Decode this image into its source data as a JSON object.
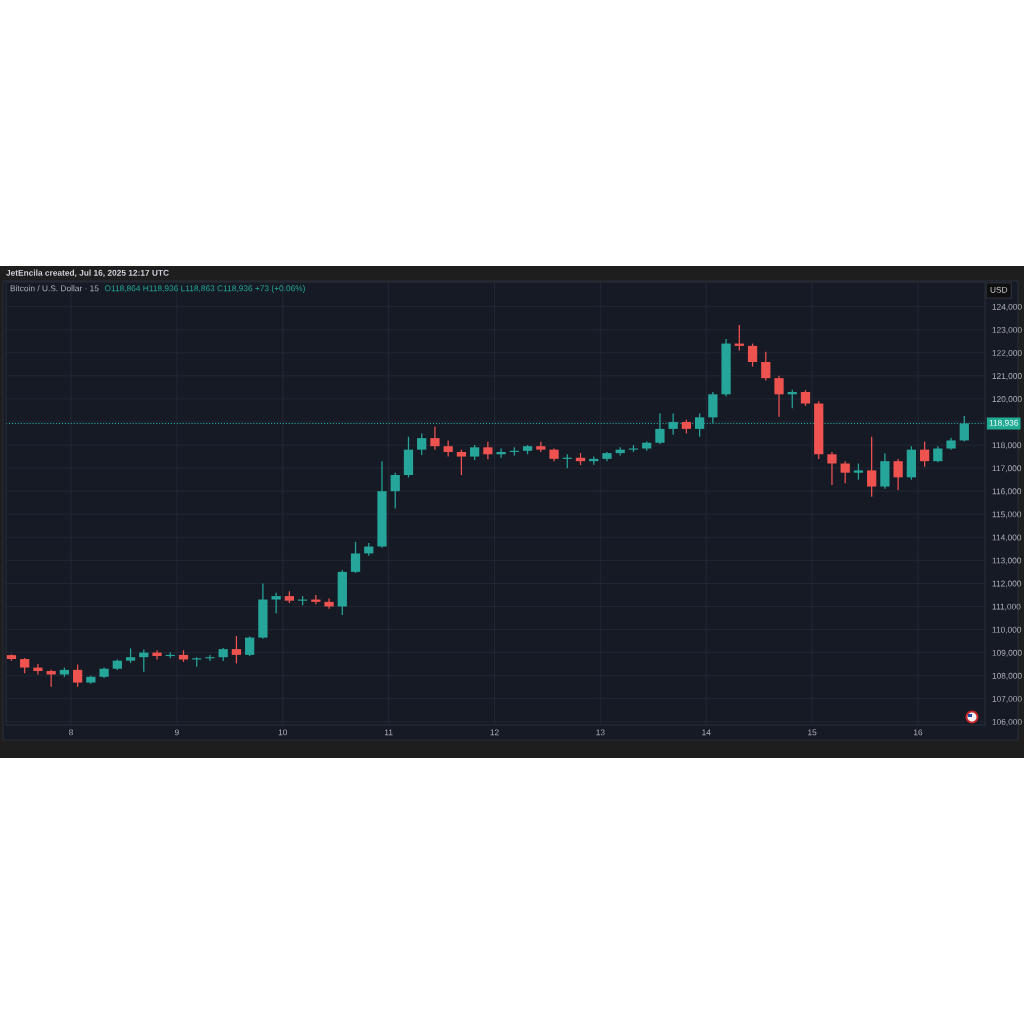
{
  "chart_data": {
    "type": "candlestick",
    "title": "Bitcoin / U.S. Dollar · 15",
    "annotations": [
      "JetEncila created, Jul 16, 2025 12:17 UTC",
      "O118,864 H118,936 L118,863 C118,936 +73 (+0.06%)",
      "USD"
    ],
    "x": [
      7.4375,
      7.5625,
      7.6875,
      7.8125,
      7.9375,
      8.0625,
      8.1875,
      8.3125,
      8.4375,
      8.5625,
      8.6875,
      8.8125,
      8.9375,
      9.0625,
      9.1875,
      9.3125,
      9.4375,
      9.5625,
      9.6875,
      9.8125,
      9.9375,
      10.0625,
      10.1875,
      10.3125,
      10.4375,
      10.5625,
      10.6875,
      10.8125,
      10.9375,
      11.0625,
      11.1875,
      11.3125,
      11.4375,
      11.5625,
      11.6875,
      11.8125,
      11.9375,
      12.0625,
      12.1875,
      12.3125,
      12.4375,
      12.5625,
      12.6875,
      12.8125,
      12.9375,
      13.0625,
      13.1875,
      13.3125,
      13.4375,
      13.5625,
      13.6875,
      13.8125,
      13.9375,
      14.0625,
      14.1875,
      14.3125,
      14.4375,
      14.5625,
      14.6875,
      14.8125,
      14.9375,
      15.0625,
      15.1875,
      15.3125,
      15.4375,
      15.5625,
      15.6875,
      15.8125,
      15.9375,
      16.0625,
      16.1875,
      16.3125,
      16.4375
    ],
    "ohlc": [
      [
        108890,
        108920,
        108650,
        108720
      ],
      [
        108720,
        108760,
        108100,
        108350
      ],
      [
        108350,
        108500,
        108050,
        108200
      ],
      [
        108200,
        108260,
        107520,
        108050
      ],
      [
        108050,
        108350,
        107950,
        108250
      ],
      [
        108250,
        108480,
        107520,
        107700
      ],
      [
        107700,
        108000,
        107650,
        107950
      ],
      [
        107950,
        108350,
        107900,
        108300
      ],
      [
        108300,
        108700,
        108250,
        108650
      ],
      [
        108650,
        109180,
        108550,
        108800
      ],
      [
        108800,
        109130,
        108170,
        109000
      ],
      [
        109000,
        109100,
        108700,
        108850
      ],
      [
        108850,
        109000,
        108750,
        108900
      ],
      [
        108900,
        109100,
        108600,
        108700
      ],
      [
        108700,
        108800,
        108385,
        108750
      ],
      [
        108750,
        108900,
        108650,
        108800
      ],
      [
        108800,
        109200,
        108640,
        109150
      ],
      [
        109150,
        109716,
        108530,
        108900
      ],
      [
        108900,
        109700,
        108850,
        109650
      ],
      [
        109650,
        112000,
        109600,
        111300
      ],
      [
        111300,
        111600,
        110700,
        111450
      ],
      [
        111450,
        111660,
        111150,
        111250
      ],
      [
        111250,
        111450,
        111050,
        111300
      ],
      [
        111300,
        111500,
        111100,
        111200
      ],
      [
        111200,
        111350,
        110900,
        111000
      ],
      [
        111000,
        112580,
        110630,
        112500
      ],
      [
        112500,
        113800,
        112450,
        113300
      ],
      [
        113300,
        113750,
        113200,
        113600
      ],
      [
        113600,
        117300,
        113550,
        116000
      ],
      [
        116000,
        116800,
        115250,
        116700
      ],
      [
        116700,
        118360,
        116600,
        117800
      ],
      [
        117800,
        118500,
        117570,
        118300
      ],
      [
        118300,
        118790,
        117800,
        117950
      ],
      [
        117950,
        118200,
        117500,
        117700
      ],
      [
        117700,
        117800,
        116700,
        117500
      ],
      [
        117500,
        118000,
        117350,
        117900
      ],
      [
        117900,
        118140,
        117380,
        117600
      ],
      [
        117600,
        117850,
        117450,
        117700
      ],
      [
        117700,
        117900,
        117550,
        117750
      ],
      [
        117750,
        118000,
        117600,
        117950
      ],
      [
        117950,
        118140,
        117700,
        117800
      ],
      [
        117800,
        117850,
        117300,
        117400
      ],
      [
        117400,
        117600,
        116990,
        117450
      ],
      [
        117450,
        117650,
        117130,
        117300
      ],
      [
        117300,
        117500,
        117150,
        117400
      ],
      [
        117400,
        117700,
        117300,
        117650
      ],
      [
        117650,
        117900,
        117550,
        117800
      ],
      [
        117800,
        118000,
        117700,
        117850
      ],
      [
        117850,
        118150,
        117750,
        118100
      ],
      [
        118100,
        119370,
        118050,
        118700
      ],
      [
        118700,
        119370,
        118450,
        119000
      ],
      [
        119000,
        119100,
        118500,
        118700
      ],
      [
        118700,
        119370,
        118360,
        119200
      ],
      [
        119200,
        120300,
        118950,
        120200
      ],
      [
        120200,
        122600,
        120100,
        122400
      ],
      [
        122400,
        123200,
        122100,
        122300
      ],
      [
        122300,
        122400,
        121400,
        121600
      ],
      [
        121600,
        122050,
        120800,
        120900
      ],
      [
        120900,
        121000,
        119230,
        120200
      ],
      [
        120200,
        120400,
        119600,
        120300
      ],
      [
        120300,
        120380,
        119700,
        119800
      ],
      [
        119800,
        119900,
        117400,
        117600
      ],
      [
        117600,
        117700,
        116265,
        117200
      ],
      [
        117200,
        117300,
        116340,
        116800
      ],
      [
        116800,
        117200,
        116500,
        116900
      ],
      [
        116900,
        118360,
        115760,
        116200
      ],
      [
        116200,
        117640,
        116100,
        117300
      ],
      [
        117300,
        117400,
        116050,
        116600
      ],
      [
        116600,
        117950,
        116500,
        117800
      ],
      [
        117800,
        118150,
        117060,
        117300
      ],
      [
        117300,
        117950,
        117250,
        117850
      ],
      [
        117850,
        118300,
        117800,
        118200
      ],
      [
        118200,
        119257,
        118150,
        118936
      ]
    ],
    "colors": [
      "#ef5350",
      "#ef5350",
      "#ef5350",
      "#ef5350",
      "#26a69a",
      "#ef5350",
      "#26a69a",
      "#26a69a",
      "#26a69a",
      "#26a69a",
      "#26a69a",
      "#ef5350",
      "#26a69a",
      "#ef5350",
      "#26a69a",
      "#26a69a",
      "#26a69a",
      "#ef5350",
      "#26a69a",
      "#26a69a",
      "#26a69a",
      "#ef5350",
      "#26a69a",
      "#ef5350",
      "#ef5350",
      "#26a69a",
      "#26a69a",
      "#26a69a",
      "#26a69a",
      "#26a69a",
      "#26a69a",
      "#26a69a",
      "#ef5350",
      "#ef5350",
      "#ef5350",
      "#26a69a",
      "#ef5350",
      "#26a69a",
      "#26a69a",
      "#26a69a",
      "#ef5350",
      "#ef5350",
      "#26a69a",
      "#ef5350",
      "#26a69a",
      "#26a69a",
      "#26a69a",
      "#26a69a",
      "#26a69a",
      "#26a69a",
      "#26a69a",
      "#ef5350",
      "#26a69a",
      "#26a69a",
      "#26a69a",
      "#ef5350",
      "#ef5350",
      "#ef5350",
      "#ef5350",
      "#26a69a",
      "#ef5350",
      "#ef5350",
      "#ef5350",
      "#ef5350",
      "#26a69a",
      "#ef5350",
      "#26a69a",
      "#ef5350",
      "#26a69a",
      "#ef5350",
      "#26a69a",
      "#26a69a",
      "#26a69a"
    ],
    "xlim": [
      7.386,
      16.633
    ],
    "ylim": [
      105860,
      125070
    ],
    "xticks": [
      8,
      9,
      10,
      11,
      12,
      13,
      14,
      15,
      16
    ],
    "yticks": [
      {
        "value": 106000,
        "label": "106,000"
      },
      {
        "value": 107000,
        "label": "107,000"
      },
      {
        "value": 108000,
        "label": "108,000"
      },
      {
        "value": 109000,
        "label": "109,000"
      },
      {
        "value": 110000,
        "label": "110,000"
      },
      {
        "value": 111000,
        "label": "111,000"
      },
      {
        "value": 112000,
        "label": "112,000"
      },
      {
        "value": 113000,
        "label": "113,000"
      },
      {
        "value": 114000,
        "label": "114,000"
      },
      {
        "value": 115000,
        "label": "115,000"
      },
      {
        "value": 116000,
        "label": "116,000"
      },
      {
        "value": 117000,
        "label": "117,000"
      },
      {
        "value": 118000,
        "label": "118,000"
      },
      {
        "value": 119000,
        "label": null
      },
      {
        "value": 120000,
        "label": "120,000"
      },
      {
        "value": 121000,
        "label": "121,000"
      },
      {
        "value": 122000,
        "label": "122,000"
      },
      {
        "value": 123000,
        "label": "123,000"
      },
      {
        "value": 124000,
        "label": "124,000"
      }
    ],
    "ref_lines": [
      {
        "axis": "y",
        "value": 118936,
        "label": "118,936",
        "color": "#22ab94",
        "line_style": "dotted"
      }
    ],
    "grid": true
  }
}
